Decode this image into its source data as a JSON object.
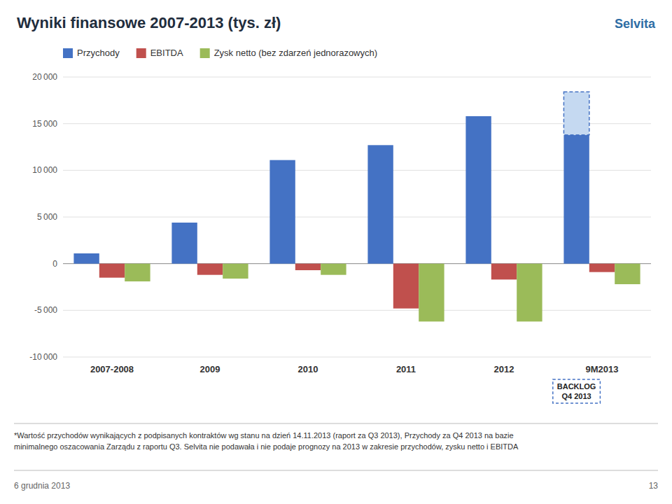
{
  "chart_data": {
    "type": "bar",
    "title": "Wyniki finansowe 2007-2013 (tys. zł)",
    "categories": [
      "2007-2008",
      "2009",
      "2010",
      "2011",
      "2012",
      "9M2013"
    ],
    "series": [
      {
        "name": "Przychody",
        "color": "#4472C4",
        "values": [
          1100,
          4400,
          11100,
          12700,
          15800,
          13800
        ]
      },
      {
        "name": "EBITDA",
        "color": "#C0504D",
        "values": [
          -1500,
          -1200,
          -700,
          -4800,
          -1700,
          -900
        ]
      },
      {
        "name": "Zysk netto (bez zdarzeń jednorazowych)",
        "color": "#9BBB59",
        "values": [
          -1900,
          -1600,
          -1200,
          -6200,
          -6200,
          -2200
        ]
      }
    ],
    "backlog": {
      "label": "BACKLOG\nQ4 2013",
      "category": "9M2013",
      "value": 18400,
      "color": "#C5D9F1"
    },
    "ylim": [
      -10000,
      20000
    ],
    "yticks": [
      {
        "value": -10000,
        "label": "-10 000"
      },
      {
        "value": -5000,
        "label": "-5 000"
      },
      0,
      {
        "value": 5000,
        "label": "5 000"
      },
      {
        "value": 10000,
        "label": "10 000"
      },
      {
        "value": 15000,
        "label": "15 000"
      },
      {
        "value": 20000,
        "label": "20 000"
      }
    ],
    "grid": true,
    "legend": "top",
    "brand": "Selvita",
    "footnotes": [
      "*Wartość przychodów wynikających z podpisanych kontraktów wg stanu na dzień 14.11.2013 (raport za Q3 2013), Przychody za Q4 2013 na bazie",
      "minimalnego oszacowania Zarządu z raportu Q3. Selvita nie podawała i nie podaje prognozy na 2013 w zakresie przychodów, zysku netto i EBITDA"
    ],
    "footer": [
      "6 grudnia 2013",
      "13"
    ]
  }
}
